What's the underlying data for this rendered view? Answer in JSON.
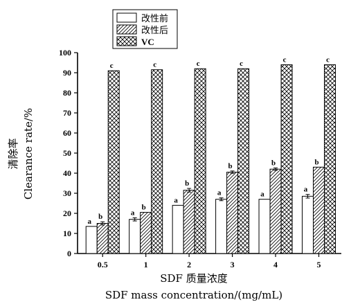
{
  "chart_data": {
    "type": "bar",
    "categories": [
      "0.5",
      "1",
      "2",
      "3",
      "4",
      "5"
    ],
    "series": [
      {
        "name": "改性前",
        "values": [
          13.5,
          17,
          24,
          27,
          27,
          28.5
        ],
        "errors": [
          0,
          0.8,
          0,
          0.7,
          0,
          0.9
        ],
        "labels": [
          "a",
          "a",
          "a",
          "a",
          "a",
          "a"
        ],
        "pattern": "none"
      },
      {
        "name": "改性后",
        "values": [
          15,
          20.5,
          31.5,
          40.5,
          42,
          43
        ],
        "errors": [
          0.8,
          0,
          0.9,
          0.6,
          0.6,
          0
        ],
        "labels": [
          "b",
          "b",
          "b",
          "b",
          "b",
          "b"
        ],
        "pattern": "diagonal"
      },
      {
        "name": "VC",
        "values": [
          91,
          91.5,
          92,
          92,
          94,
          94
        ],
        "errors": [
          0,
          0,
          0,
          0,
          0,
          0
        ],
        "labels": [
          "c",
          "c",
          "c",
          "c",
          "c",
          "c"
        ],
        "pattern": "crosshatch"
      }
    ],
    "ylabel_cn": "清除率",
    "ylabel_en": "Clearance rate/%",
    "xlabel_cn": "SDF 质量浓度",
    "xlabel_en": "SDF mass concentration/(mg/mL)",
    "ylim": [
      0,
      100
    ],
    "yticks": [
      0,
      10,
      20,
      30,
      40,
      50,
      60,
      70,
      80,
      90,
      100
    ],
    "legend_position": "top-left (outside above plot)",
    "grid": false
  }
}
